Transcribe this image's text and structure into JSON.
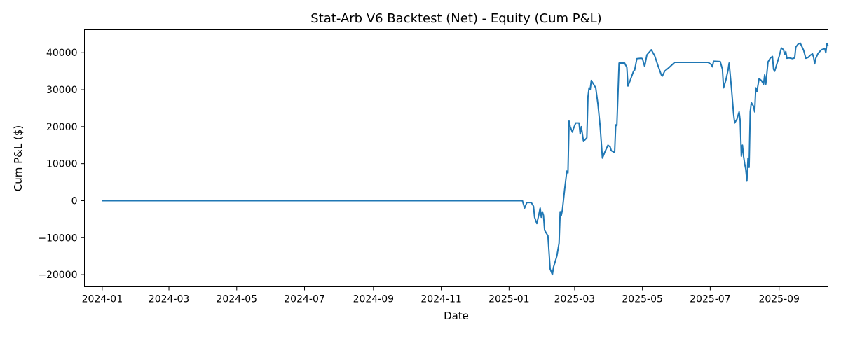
{
  "chart_data": {
    "type": "line",
    "title": "Stat-Arb V6 Backtest (Net) - Equity (Cum P&L)",
    "xlabel": "Date",
    "ylabel": "Cum P&L ($)",
    "xlim": [
      "2023-12-16",
      "2025-10-15"
    ],
    "ylim": [
      -23300,
      46200
    ],
    "x_ticks": [
      "2024-01",
      "2024-03",
      "2024-05",
      "2024-07",
      "2024-09",
      "2024-11",
      "2025-01",
      "2025-03",
      "2025-05",
      "2025-07",
      "2025-09"
    ],
    "y_ticks": [
      -20000,
      -10000,
      0,
      10000,
      20000,
      30000,
      40000
    ],
    "y_tick_labels": [
      "−20000",
      "−10000",
      "0",
      "10000",
      "20000",
      "30000",
      "40000"
    ],
    "grid": false,
    "series": [
      {
        "color": "#1f77b4",
        "points": [
          [
            "2024-01-01",
            0
          ],
          [
            "2025-01-13",
            0
          ],
          [
            "2025-01-15",
            -2000
          ],
          [
            "2025-01-17",
            -500
          ],
          [
            "2025-01-21",
            -500
          ],
          [
            "2025-01-23",
            -1500
          ],
          [
            "2025-01-24",
            -4500
          ],
          [
            "2025-01-26",
            -6200
          ],
          [
            "2025-01-28",
            -3500
          ],
          [
            "2025-01-29",
            -2000
          ],
          [
            "2025-01-30",
            -4500
          ],
          [
            "2025-01-31",
            -3000
          ],
          [
            "2025-02-01",
            -4000
          ],
          [
            "2025-02-02",
            -8000
          ],
          [
            "2025-02-04",
            -9000
          ],
          [
            "2025-02-05",
            -9500
          ],
          [
            "2025-02-06",
            -14000
          ],
          [
            "2025-02-07",
            -18500
          ],
          [
            "2025-02-09",
            -20000
          ],
          [
            "2025-02-10",
            -18000
          ],
          [
            "2025-02-13",
            -15000
          ],
          [
            "2025-02-15",
            -11500
          ],
          [
            "2025-02-16",
            -3000
          ],
          [
            "2025-02-17",
            -4000
          ],
          [
            "2025-02-18",
            -2500
          ],
          [
            "2025-02-20",
            3000
          ],
          [
            "2025-02-22",
            8000
          ],
          [
            "2025-02-23",
            7500
          ],
          [
            "2025-02-24",
            21500
          ],
          [
            "2025-02-25",
            20000
          ],
          [
            "2025-02-27",
            18500
          ],
          [
            "2025-02-28",
            19500
          ],
          [
            "2025-03-02",
            21000
          ],
          [
            "2025-03-05",
            21000
          ],
          [
            "2025-03-06",
            18000
          ],
          [
            "2025-03-07",
            20000
          ],
          [
            "2025-03-08",
            18000
          ],
          [
            "2025-03-09",
            16000
          ],
          [
            "2025-03-12",
            17000
          ],
          [
            "2025-03-13",
            28000
          ],
          [
            "2025-03-14",
            30500
          ],
          [
            "2025-03-15",
            30000
          ],
          [
            "2025-03-16",
            32500
          ],
          [
            "2025-03-18",
            31500
          ],
          [
            "2025-03-20",
            30500
          ],
          [
            "2025-03-22",
            26000
          ],
          [
            "2025-03-24",
            20000
          ],
          [
            "2025-03-26",
            11500
          ],
          [
            "2025-03-28",
            13000
          ],
          [
            "2025-03-31",
            15000
          ],
          [
            "2025-04-02",
            14500
          ],
          [
            "2025-04-03",
            13500
          ],
          [
            "2025-04-06",
            13000
          ],
          [
            "2025-04-07",
            20500
          ],
          [
            "2025-04-08",
            20300
          ],
          [
            "2025-04-10",
            37200
          ],
          [
            "2025-04-15",
            37200
          ],
          [
            "2025-04-17",
            36000
          ],
          [
            "2025-04-18",
            31000
          ],
          [
            "2025-04-20",
            32500
          ],
          [
            "2025-04-23",
            35000
          ],
          [
            "2025-04-24",
            35300
          ],
          [
            "2025-04-26",
            38400
          ],
          [
            "2025-04-30",
            38500
          ],
          [
            "2025-05-01",
            38400
          ],
          [
            "2025-05-03",
            36300
          ],
          [
            "2025-05-05",
            39400
          ],
          [
            "2025-05-09",
            40800
          ],
          [
            "2025-05-12",
            39200
          ],
          [
            "2025-05-15",
            36500
          ],
          [
            "2025-05-18",
            34000
          ],
          [
            "2025-05-19",
            33700
          ],
          [
            "2025-05-21",
            35000
          ],
          [
            "2025-05-25",
            36000
          ],
          [
            "2025-05-30",
            37400
          ],
          [
            "2025-06-29",
            37400
          ],
          [
            "2025-07-02",
            36800
          ],
          [
            "2025-07-03",
            36200
          ],
          [
            "2025-07-04",
            37700
          ],
          [
            "2025-07-10",
            37600
          ],
          [
            "2025-07-12",
            35500
          ],
          [
            "2025-07-13",
            30500
          ],
          [
            "2025-07-15",
            32500
          ],
          [
            "2025-07-17",
            35200
          ],
          [
            "2025-07-18",
            37200
          ],
          [
            "2025-07-20",
            30800
          ],
          [
            "2025-07-22",
            23500
          ],
          [
            "2025-07-23",
            21000
          ],
          [
            "2025-07-25",
            22000
          ],
          [
            "2025-07-27",
            24000
          ],
          [
            "2025-07-28",
            21500
          ],
          [
            "2025-07-29",
            12000
          ],
          [
            "2025-07-30",
            15000
          ],
          [
            "2025-07-31",
            12000
          ],
          [
            "2025-08-01",
            10000
          ],
          [
            "2025-08-02",
            8500
          ],
          [
            "2025-08-03",
            5300
          ],
          [
            "2025-08-04",
            11500
          ],
          [
            "2025-08-05",
            9000
          ],
          [
            "2025-08-06",
            24000
          ],
          [
            "2025-08-07",
            26500
          ],
          [
            "2025-08-09",
            25500
          ],
          [
            "2025-08-10",
            24000
          ],
          [
            "2025-08-11",
            30500
          ],
          [
            "2025-08-12",
            29500
          ],
          [
            "2025-08-14",
            33000
          ],
          [
            "2025-08-16",
            32500
          ],
          [
            "2025-08-18",
            31500
          ],
          [
            "2025-08-19",
            34000
          ],
          [
            "2025-08-20",
            31500
          ],
          [
            "2025-08-22",
            37500
          ],
          [
            "2025-08-24",
            38500
          ],
          [
            "2025-08-26",
            39000
          ],
          [
            "2025-08-27",
            35500
          ],
          [
            "2025-08-28",
            35000
          ],
          [
            "2025-08-30",
            37000
          ],
          [
            "2025-09-01",
            39000
          ],
          [
            "2025-09-03",
            41300
          ],
          [
            "2025-09-05",
            40800
          ],
          [
            "2025-09-06",
            39500
          ],
          [
            "2025-09-07",
            40300
          ],
          [
            "2025-09-08",
            38500
          ],
          [
            "2025-09-10",
            38600
          ],
          [
            "2025-09-13",
            38400
          ],
          [
            "2025-09-15",
            38600
          ],
          [
            "2025-09-16",
            41500
          ],
          [
            "2025-09-18",
            42300
          ],
          [
            "2025-09-20",
            42600
          ],
          [
            "2025-09-23",
            40700
          ],
          [
            "2025-09-25",
            38500
          ],
          [
            "2025-09-27",
            38700
          ],
          [
            "2025-09-29",
            39300
          ],
          [
            "2025-10-01",
            39700
          ],
          [
            "2025-10-02",
            38800
          ],
          [
            "2025-10-03",
            37000
          ],
          [
            "2025-10-04",
            38500
          ],
          [
            "2025-10-06",
            39800
          ],
          [
            "2025-10-09",
            40800
          ],
          [
            "2025-10-11",
            41000
          ],
          [
            "2025-10-12",
            41200
          ],
          [
            "2025-10-13",
            40000
          ],
          [
            "2025-10-14",
            42500
          ],
          [
            "2025-10-15",
            41900
          ]
        ]
      }
    ]
  }
}
